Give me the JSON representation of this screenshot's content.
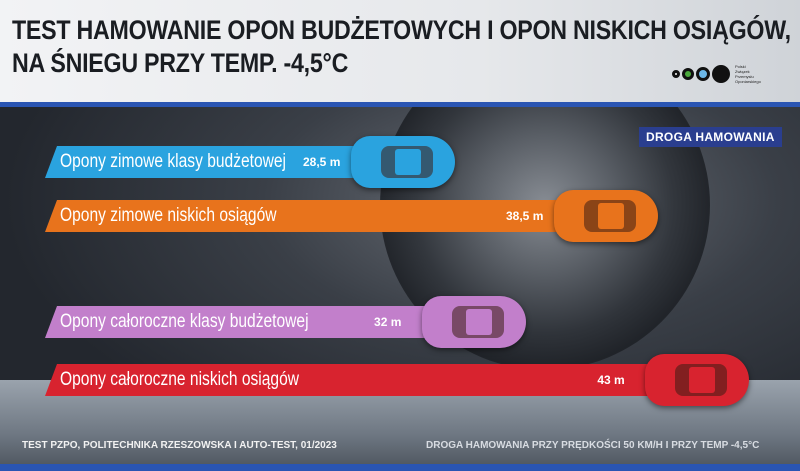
{
  "title_line1": "TEST HAMOWANIE OPON BUDŻETOWYCH I OPON NISKICH OSIĄGÓW,",
  "title_line2": "NA ŚNIEGU PRZY TEMP. -4,5°C",
  "logo": {
    "text": "Polski Związek Przemysłu Oponiarskiego",
    "dot_colors": [
      "#ffffff",
      "#4aa83c",
      "#6cb8e8",
      "#111111"
    ]
  },
  "chart_data": {
    "type": "bar",
    "orientation": "horizontal",
    "legend": "DROGA HAMOWANIA",
    "categories": [
      "Opony zimowe klasy budżetowej",
      "Opony zimowe niskich osiągów",
      "Opony całoroczne klasy budżetowej",
      "Opony całoroczne niskich osiągów"
    ],
    "values": [
      28.5,
      38.5,
      32,
      43
    ],
    "value_labels": [
      "28,5 m",
      "38,5 m",
      "32 m",
      "43 m"
    ],
    "unit": "m",
    "colors": [
      "#2aa3df",
      "#e8731c",
      "#c27fcb",
      "#d8232f"
    ]
  },
  "footer": {
    "source": "TEST PZPO, POLITECHNIKA RZESZOWSKA I AUTO-TEST, 01/2023",
    "note": "DROGA HAMOWANIA PRZY PRĘDKOŚCI 50 KM/H I PRZY TEMP -4,5°C"
  }
}
